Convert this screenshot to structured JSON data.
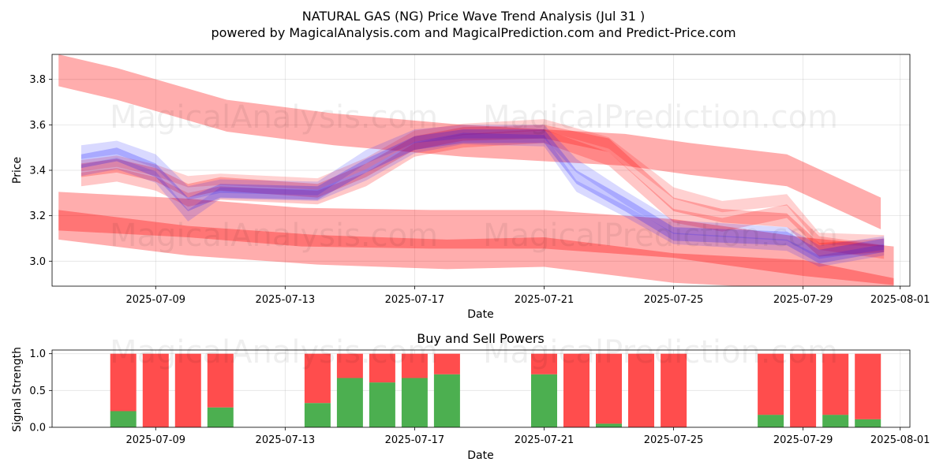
{
  "title": "NATURAL GAS (NG) Price Wave Trend Analysis (Jul 31 )",
  "subtitle": "powered by MagicalAnalysis.com and MagicalPrediction.com and Predict-Price.com",
  "watermarks": [
    "MagicalAnalysis.com",
    "MagicalPrediction.com"
  ],
  "chart_data": [
    {
      "type": "area",
      "title": "",
      "xlabel": "Date",
      "ylabel": "Price",
      "xlim_days": [
        -3.2,
        23.3
      ],
      "ylim": [
        2.89,
        3.91
      ],
      "x_ticks": [
        "2025-07-09",
        "2025-07-13",
        "2025-07-17",
        "2025-07-21",
        "2025-07-25",
        "2025-07-29",
        "2025-08-01"
      ],
      "x_tick_days": [
        0,
        4,
        8,
        12,
        16,
        20,
        23
      ],
      "y_ticks": [
        3.0,
        3.2,
        3.4,
        3.6,
        3.8
      ],
      "grid": true,
      "red_bands": [
        {
          "x": [
            -3.0,
            -1.2,
            0.5,
            2.2,
            5.5,
            9.5,
            12.0,
            14.5,
            16.5,
            19.5,
            22.4
          ],
          "center": [
            3.84,
            3.78,
            3.71,
            3.64,
            3.58,
            3.53,
            3.51,
            3.49,
            3.45,
            3.4,
            3.21
          ],
          "width": 0.14,
          "opacity": 0.32
        },
        {
          "x": [
            -3.0,
            1.0,
            4.5,
            8.5,
            12.0,
            16.0,
            20.0,
            22.8
          ],
          "center": [
            3.22,
            3.19,
            3.15,
            3.14,
            3.14,
            3.1,
            3.02,
            2.98
          ],
          "width": 0.17,
          "opacity": 0.32
        },
        {
          "x": [
            -3.0,
            1.0,
            5.0,
            9.0,
            12.0,
            16.0,
            20.0,
            22.8
          ],
          "center": [
            3.16,
            3.09,
            3.05,
            3.03,
            3.04,
            2.97,
            2.94,
            2.86
          ],
          "width": 0.13,
          "opacity": 0.32
        },
        {
          "x": [
            -2.3,
            -1.2,
            0.0,
            1.0,
            2.0,
            5.0,
            6.5,
            8.0,
            9.5,
            12.0,
            14.0,
            16.0,
            17.5,
            19.5,
            20.5,
            22.5
          ],
          "center": [
            3.4,
            3.42,
            3.38,
            3.31,
            3.34,
            3.31,
            3.4,
            3.52,
            3.56,
            3.57,
            3.51,
            3.25,
            3.2,
            3.18,
            3.05,
            3.07
          ],
          "width": 0.06,
          "opacity": 0.25
        },
        {
          "x": [
            -2.3,
            -1.2,
            0.0,
            1.0,
            2.0,
            5.0,
            6.5,
            8.0,
            9.5,
            12.0,
            14.0,
            16.0,
            17.5,
            19.5,
            20.5,
            22.5
          ],
          "center": [
            3.36,
            3.38,
            3.34,
            3.27,
            3.3,
            3.28,
            3.36,
            3.49,
            3.53,
            3.55,
            3.45,
            3.2,
            3.16,
            3.22,
            3.08,
            3.04
          ],
          "width": 0.06,
          "opacity": 0.22
        },
        {
          "x": [
            -2.3,
            -1.2,
            0.0,
            1.0,
            2.0,
            5.0,
            6.5,
            8.0,
            9.5,
            12.0,
            14.0,
            16.0,
            17.5,
            19.5,
            20.5,
            22.5
          ],
          "center": [
            3.42,
            3.44,
            3.4,
            3.35,
            3.36,
            3.34,
            3.43,
            3.55,
            3.58,
            3.6,
            3.52,
            3.3,
            3.24,
            3.27,
            3.1,
            3.09
          ],
          "width": 0.05,
          "opacity": 0.18
        }
      ],
      "blue_bands": [
        {
          "x": [
            -2.3,
            -1.2,
            0.0,
            1.0,
            2.0,
            5.0,
            6.5,
            8.0,
            9.5,
            12.0,
            13.0,
            14.5,
            16.0,
            19.5,
            20.5,
            22.5
          ],
          "center": [
            3.44,
            3.47,
            3.4,
            3.25,
            3.31,
            3.3,
            3.42,
            3.52,
            3.55,
            3.55,
            3.37,
            3.25,
            3.12,
            3.1,
            3.02,
            3.07
          ],
          "width": 0.06,
          "opacity": 0.22
        },
        {
          "x": [
            -2.3,
            -1.2,
            0.0,
            1.0,
            2.0,
            5.0,
            6.5,
            8.0,
            9.5,
            12.0,
            13.0,
            14.5,
            16.0,
            19.5,
            20.5,
            22.5
          ],
          "center": [
            3.48,
            3.5,
            3.44,
            3.3,
            3.33,
            3.32,
            3.46,
            3.55,
            3.57,
            3.57,
            3.42,
            3.28,
            3.15,
            3.12,
            3.04,
            3.08
          ],
          "width": 0.06,
          "opacity": 0.15
        },
        {
          "x": [
            -2.3,
            -1.2,
            0.0,
            1.0,
            2.0,
            5.0,
            6.5,
            8.0,
            9.5,
            12.0,
            13.0,
            14.5,
            16.0,
            19.5,
            20.5,
            22.5
          ],
          "center": [
            3.4,
            3.43,
            3.37,
            3.2,
            3.3,
            3.29,
            3.38,
            3.5,
            3.54,
            3.53,
            3.33,
            3.22,
            3.1,
            3.07,
            3.0,
            3.05
          ],
          "width": 0.05,
          "opacity": 0.15
        }
      ]
    },
    {
      "type": "bar",
      "title": "Buy and Sell Powers",
      "xlabel": "Date",
      "ylabel": "Signal Strength",
      "xlim_days": [
        -3.2,
        23.3
      ],
      "ylim": [
        0,
        1.05
      ],
      "y_ticks": [
        "0.0",
        "0.5",
        "1.0"
      ],
      "y_tick_values": [
        0.0,
        0.5,
        1.0
      ],
      "x_ticks": [
        "2025-07-09",
        "2025-07-13",
        "2025-07-17",
        "2025-07-21",
        "2025-07-25",
        "2025-07-29",
        "2025-08-01"
      ],
      "x_tick_days": [
        0,
        4,
        8,
        12,
        16,
        20,
        23
      ],
      "grid": true,
      "colors": {
        "buy": "#4caf50",
        "sell": "#ff4d4d"
      },
      "categories": [
        "2025-07-08",
        "2025-07-09",
        "2025-07-10",
        "2025-07-11",
        "2025-07-14",
        "2025-07-15",
        "2025-07-16",
        "2025-07-17",
        "2025-07-18",
        "2025-07-21",
        "2025-07-22",
        "2025-07-23",
        "2025-07-24",
        "2025-07-25",
        "2025-07-28",
        "2025-07-29",
        "2025-07-30",
        "2025-07-31"
      ],
      "bar_days": [
        -1,
        0,
        1,
        2,
        5,
        6,
        7,
        8,
        9,
        12,
        13,
        14,
        15,
        16,
        19,
        20,
        21,
        22
      ],
      "series": [
        {
          "name": "Buy",
          "values": [
            0.22,
            0.0,
            0.0,
            0.27,
            0.33,
            0.67,
            0.61,
            0.67,
            0.72,
            0.72,
            0.0,
            0.05,
            0.0,
            0.0,
            0.17,
            0.0,
            0.17,
            0.11
          ]
        },
        {
          "name": "Sell",
          "values": [
            0.78,
            1.0,
            1.0,
            0.73,
            0.67,
            0.33,
            0.39,
            0.33,
            0.28,
            0.28,
            1.0,
            0.95,
            1.0,
            1.0,
            0.83,
            1.0,
            0.83,
            0.89
          ]
        }
      ]
    }
  ]
}
